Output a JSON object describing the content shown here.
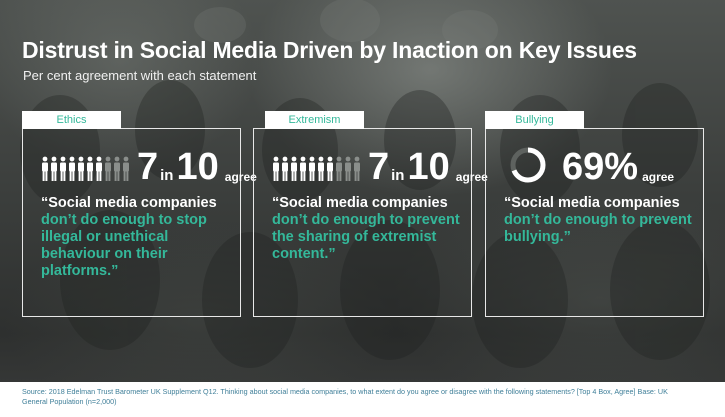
{
  "title": "Distrust in Social Media Driven by Inaction on Key Issues",
  "subtitle": "Per cent agreement with each statement",
  "cards": [
    {
      "tab": "Ethics",
      "stat_value": "7",
      "stat_in": "in",
      "stat_total": "10",
      "stat_suffix": "agree",
      "people_total": 10,
      "people_agree": 7,
      "quote_lead": "“Social media companies",
      "quote_rest": "don’t do enough to stop illegal or unethical behaviour on their platforms.”"
    },
    {
      "tab": "Extremism",
      "stat_value": "7",
      "stat_in": "in",
      "stat_total": "10",
      "stat_suffix": "agree",
      "people_total": 10,
      "people_agree": 7,
      "quote_lead": "“Social media companies",
      "quote_rest": "don’t do enough to prevent the sharing of extremist content.”"
    },
    {
      "tab": "Bullying",
      "stat_value": "69%",
      "stat_suffix": "agree",
      "ring_fraction": 0.69,
      "quote_lead": "“Social media companies",
      "quote_rest": "don’t do enough to prevent bullying.”"
    }
  ],
  "source": "Source: 2018 Edelman Trust Barometer UK Supplement Q12. Thinking about social media companies, to what extent do you agree or disagree with the following statements? [Top 4 Box, Agree] Base: UK General Population (n=2,000)",
  "colors": {
    "accent": "#34b89a",
    "source_text": "#3f7f99"
  }
}
